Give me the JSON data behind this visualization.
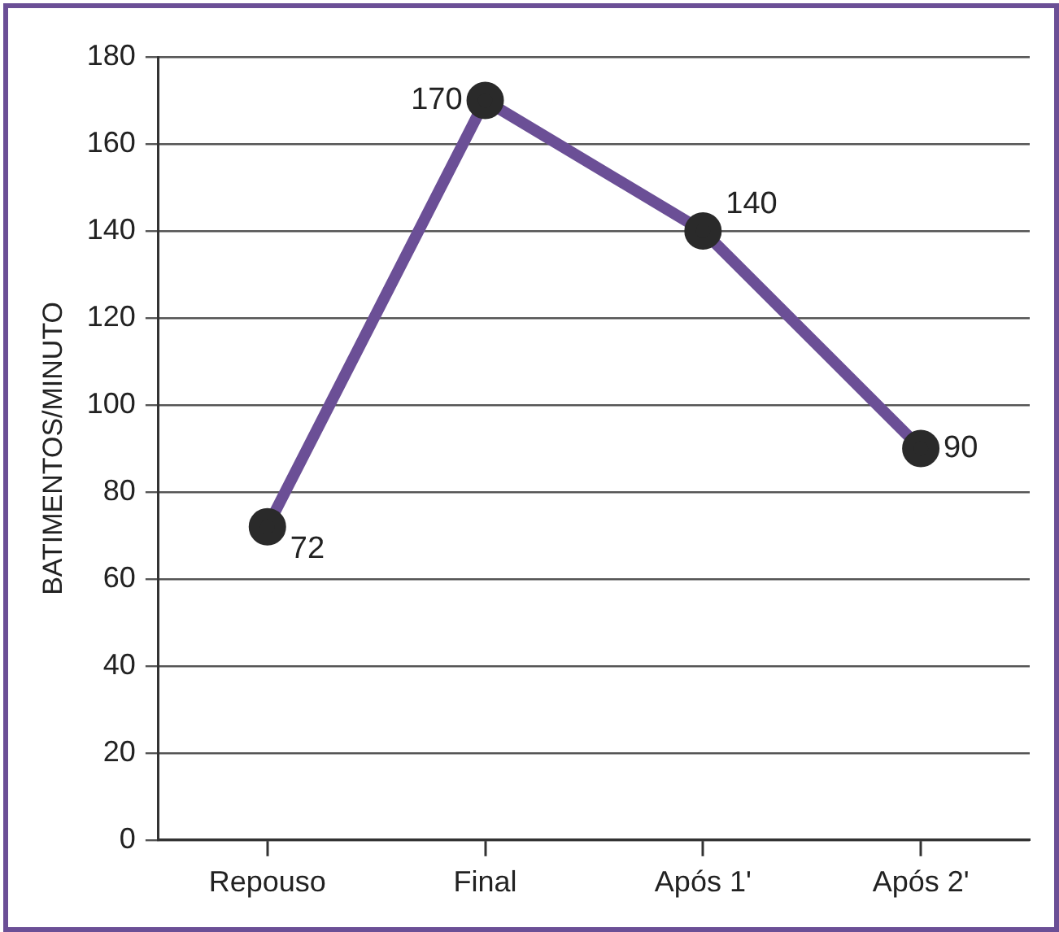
{
  "chart_data": {
    "type": "line",
    "ylabel": "BATIMENTOS/MINUTO",
    "categories": [
      "Repouso",
      "Final",
      "Após 1'",
      "Após 2'"
    ],
    "series": [
      {
        "color": "#6b4f96",
        "values": [
          72,
          170,
          140,
          90
        ]
      }
    ],
    "ylim": [
      0,
      180
    ],
    "yticks": [
      0,
      20,
      40,
      60,
      80,
      100,
      120,
      140,
      160,
      180
    ],
    "grid": "y",
    "legend": false,
    "marker": "circle",
    "data_labels": true
  }
}
